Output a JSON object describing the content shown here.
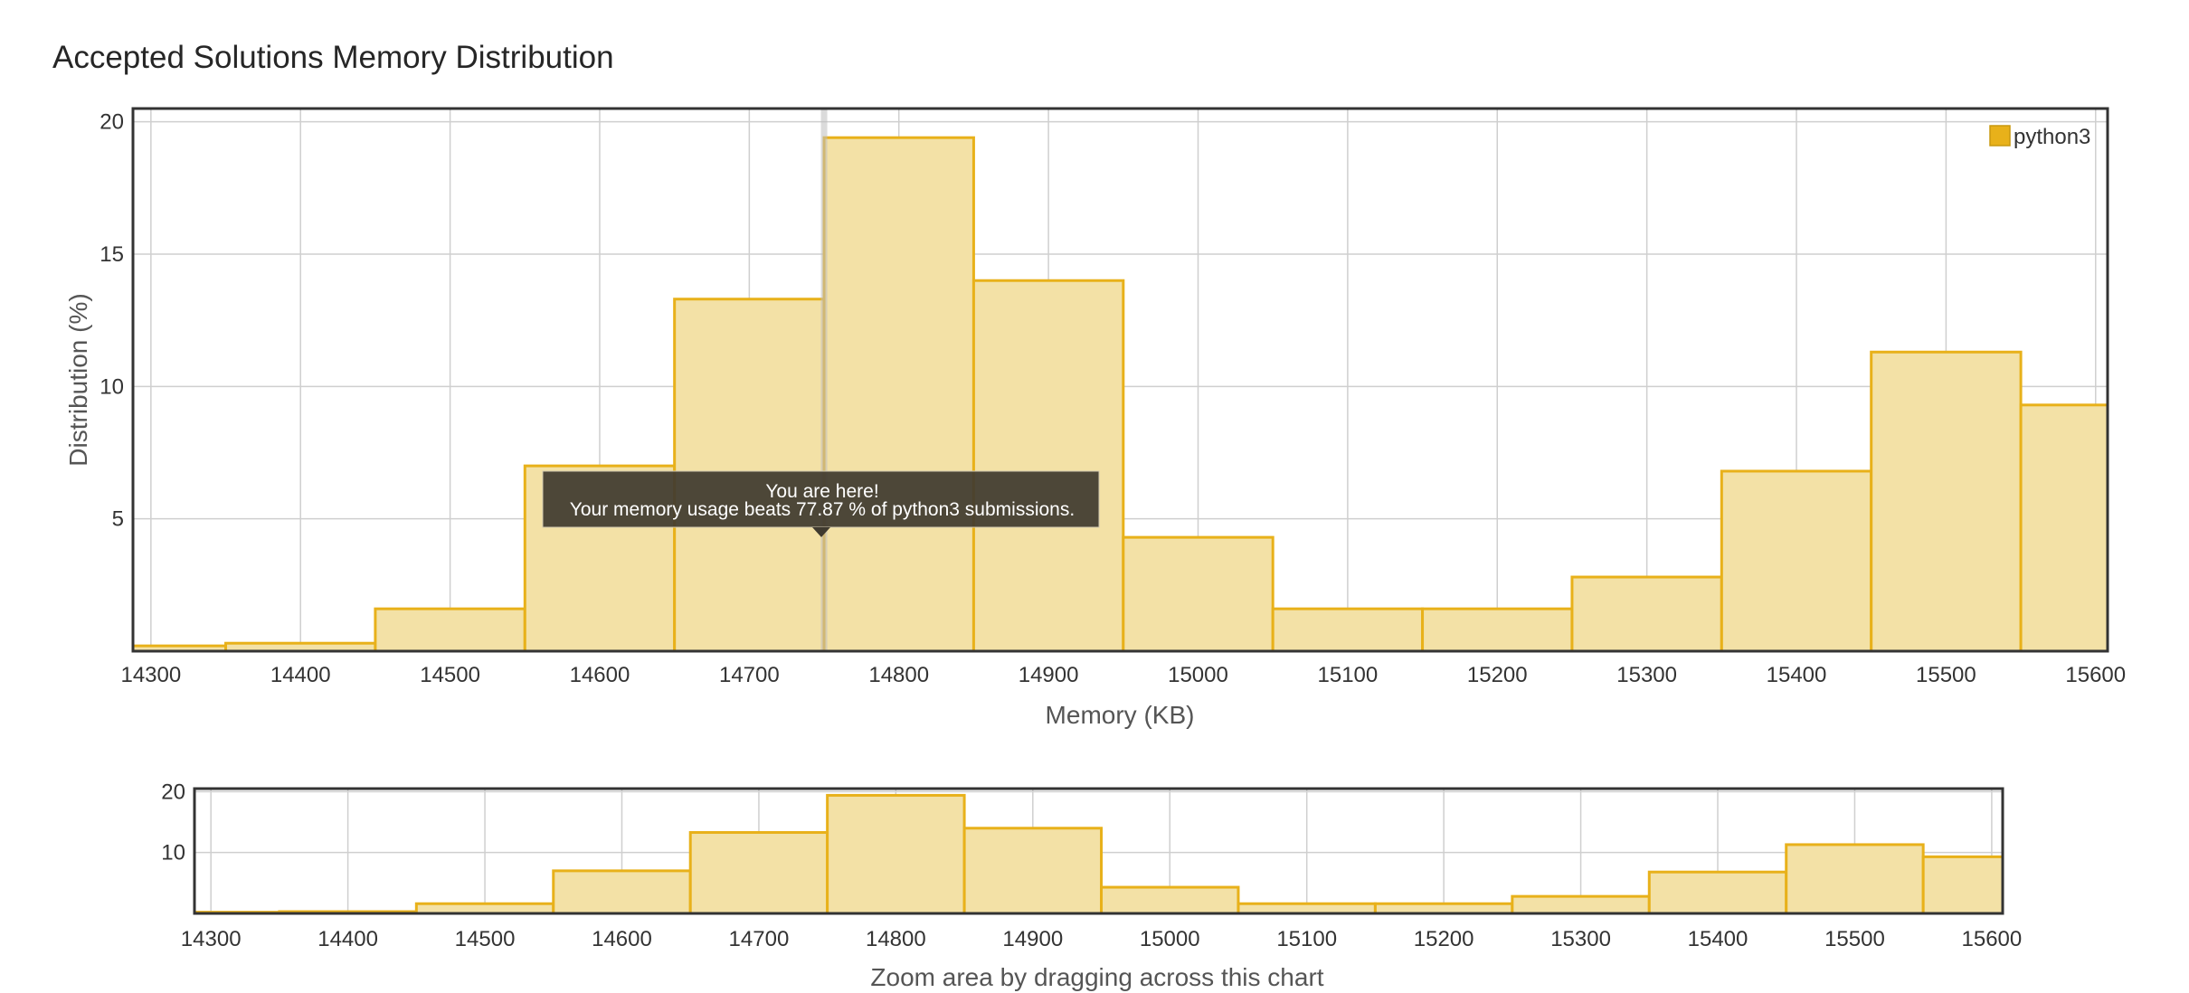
{
  "page": {
    "title": "Accepted Solutions Memory Distribution"
  },
  "chart_data": {
    "type": "bar",
    "title": "",
    "xlabel": "Memory (KB)",
    "ylabel": "Distribution (%)",
    "series": [
      {
        "name": "python3",
        "color": "#e8b11a",
        "fill": "#f3e1a6",
        "bins": [
          {
            "x": 14300,
            "value": 0.2
          },
          {
            "x": 14400,
            "value": 0.3
          },
          {
            "x": 14500,
            "value": 1.6
          },
          {
            "x": 14600,
            "value": 7.0
          },
          {
            "x": 14700,
            "value": 13.3
          },
          {
            "x": 14800,
            "value": 19.4
          },
          {
            "x": 14900,
            "value": 14.0
          },
          {
            "x": 15000,
            "value": 4.3
          },
          {
            "x": 15100,
            "value": 1.6
          },
          {
            "x": 15200,
            "value": 1.6
          },
          {
            "x": 15300,
            "value": 2.8
          },
          {
            "x": 15400,
            "value": 6.8
          },
          {
            "x": 15500,
            "value": 11.3
          },
          {
            "x": 15600,
            "value": 9.3
          }
        ]
      }
    ],
    "bin_width": 100,
    "xlim": [
      14288,
      15608
    ],
    "ylim": [
      0,
      20.5
    ],
    "x_ticks": [
      14300,
      14400,
      14500,
      14600,
      14700,
      14800,
      14900,
      15000,
      15100,
      15200,
      15300,
      15400,
      15500,
      15600
    ],
    "y_ticks": [
      5,
      10,
      15,
      20
    ],
    "grid": true,
    "legend": {
      "position": "top-right",
      "entries": [
        "python3"
      ]
    },
    "marker": {
      "x": 14750,
      "line1": "You are here!",
      "line2": "Your memory usage beats 77.87 % of python3 submissions."
    },
    "overview": {
      "y_ticks": [
        10,
        20
      ],
      "caption": "Zoom area by dragging across this chart"
    }
  }
}
